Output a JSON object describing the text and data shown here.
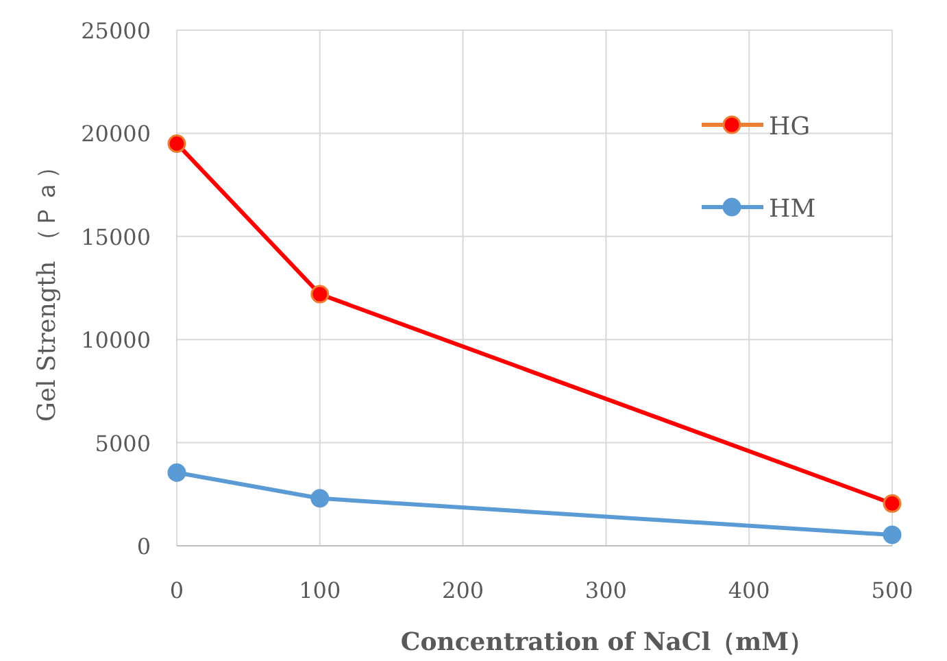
{
  "chart_data": {
    "type": "line",
    "xlabel": "Concentration of NaCl（mM）",
    "ylabel": "Gel Strength （Ｐａ）",
    "x": [
      0,
      100,
      500
    ],
    "series": [
      {
        "name": "HG",
        "color": "#ff0000",
        "values": [
          19500,
          12200,
          2050
        ]
      },
      {
        "name": "HM",
        "color": "#5b9bd5",
        "values": [
          3550,
          2300,
          530
        ]
      }
    ],
    "xlim": [
      0,
      500
    ],
    "xticks": [
      0,
      100,
      200,
      300,
      400,
      500
    ],
    "ylim": [
      0,
      25000
    ],
    "yticks": [
      0,
      5000,
      10000,
      15000,
      20000,
      25000
    ],
    "grid": true,
    "legend": "top right",
    "marker": "circle",
    "line_style": "solid"
  }
}
